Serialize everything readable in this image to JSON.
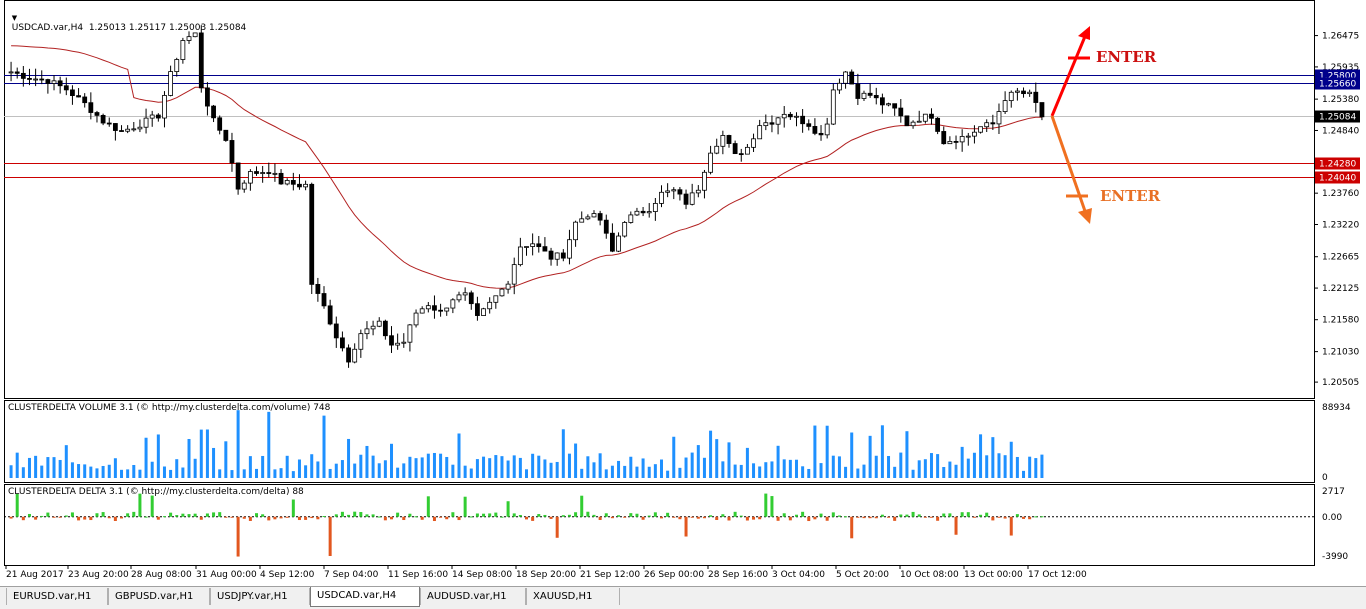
{
  "header": {
    "symbol_line": "USDCAD.var,H4  1.25013 1.25117 1.25003 1.25084",
    "dropdown_icon": "triangle-down-icon"
  },
  "indicators": {
    "volume_label": "CLUSTERDELTA VOLUME 3.1 (© http://my.clusterdelta.com/volume) 748",
    "delta_label": "CLUSTERDELTA DELTA 3.1 (© http://my.clusterdelta.com/delta) 88"
  },
  "annotations": {
    "enter_up": "ENTER",
    "enter_down": "ENTER"
  },
  "tabs": [
    {
      "label": "EURUSD.var,H1",
      "active": false
    },
    {
      "label": "GBPUSD.var,H1",
      "active": false
    },
    {
      "label": "USDJPY.var,H1",
      "active": false
    },
    {
      "label": "USDCAD.var,H4",
      "active": true
    },
    {
      "label": "AUDUSD.var,H1",
      "active": false
    },
    {
      "label": "XAUUSD,H1",
      "active": false
    }
  ],
  "colors": {
    "candle": "#000000",
    "ma_line": "#b22222",
    "blue_level": "#00008b",
    "red_level": "#cc0000",
    "volume_bar": "#1e90ff",
    "delta_pos": "#32cd32",
    "delta_neg": "#e2571f",
    "arrow_up": "#ff0000",
    "arrow_down": "#f07020"
  },
  "chart_data": [
    {
      "type": "candlestick",
      "title": "USDCAD.var,H4",
      "ylim": [
        1.203,
        1.2695
      ],
      "y_ticks": [
        "1.26475",
        "1.25935",
        "1.25380",
        "1.24840",
        "1.23760",
        "1.23220",
        "1.22665",
        "1.22125",
        "1.21580",
        "1.21030",
        "1.20505"
      ],
      "x_ticks": [
        "21 Aug 2017",
        "23 Aug 20:00",
        "28 Aug 08:00",
        "31 Aug 00:00",
        "4 Sep 12:00",
        "7 Sep 04:00",
        "11 Sep 16:00",
        "14 Sep 08:00",
        "18 Sep 20:00",
        "21 Sep 12:00",
        "26 Sep 00:00",
        "28 Sep 16:00",
        "3 Oct 04:00",
        "5 Oct 20:00",
        "10 Oct 08:00",
        "13 Oct 00:00",
        "17 Oct 12:00"
      ],
      "price_levels": [
        {
          "value": 1.258,
          "label": "1.25800",
          "color": "blue"
        },
        {
          "value": 1.2566,
          "label": "1.25660",
          "color": "blue"
        },
        {
          "value": 1.2428,
          "label": "1.24280",
          "color": "red"
        },
        {
          "value": 1.2404,
          "label": "1.24040",
          "color": "red"
        }
      ],
      "current_price": {
        "value": 1.25084,
        "label": "1.25084"
      },
      "close_path": [
        [
          0,
          1.2585
        ],
        [
          3,
          1.2575
        ],
        [
          6,
          1.257
        ],
        [
          9,
          1.2555
        ],
        [
          12,
          1.253
        ],
        [
          15,
          1.25
        ],
        [
          18,
          1.2482
        ],
        [
          21,
          1.2495
        ],
        [
          24,
          1.251
        ],
        [
          26,
          1.258
        ],
        [
          28,
          1.264
        ],
        [
          30,
          1.265
        ],
        [
          31,
          1.256
        ],
        [
          33,
          1.25
        ],
        [
          35,
          1.247
        ],
        [
          37,
          1.2385
        ],
        [
          39,
          1.241
        ],
        [
          42,
          1.2415
        ],
        [
          44,
          1.2395
        ],
        [
          47,
          1.239
        ],
        [
          48,
          1.239
        ],
        [
          49,
          1.222
        ],
        [
          51,
          1.218
        ],
        [
          53,
          1.213
        ],
        [
          55,
          1.209
        ],
        [
          57,
          1.2135
        ],
        [
          60,
          1.215
        ],
        [
          62,
          1.2115
        ],
        [
          64,
          1.212
        ],
        [
          66,
          1.217
        ],
        [
          68,
          1.2185
        ],
        [
          70,
          1.217
        ],
        [
          72,
          1.2195
        ],
        [
          74,
          1.22
        ],
        [
          76,
          1.216
        ],
        [
          78,
          1.2185
        ],
        [
          80,
          1.221
        ],
        [
          81,
          1.2225
        ],
        [
          83,
          1.2285
        ],
        [
          85,
          1.229
        ],
        [
          88,
          1.2265
        ],
        [
          90,
          1.227
        ],
        [
          92,
          1.2325
        ],
        [
          94,
          1.234
        ],
        [
          96,
          1.233
        ],
        [
          98,
          1.2275
        ],
        [
          100,
          1.233
        ],
        [
          102,
          1.234
        ],
        [
          104,
          1.235
        ],
        [
          106,
          1.2375
        ],
        [
          108,
          1.238
        ],
        [
          110,
          1.236
        ],
        [
          112,
          1.2385
        ],
        [
          114,
          1.245
        ],
        [
          116,
          1.2475
        ],
        [
          118,
          1.244
        ],
        [
          120,
          1.2455
        ],
        [
          122,
          1.2495
        ],
        [
          124,
          1.25
        ],
        [
          126,
          1.2515
        ],
        [
          128,
          1.2505
        ],
        [
          130,
          1.2495
        ],
        [
          132,
          1.2475
        ],
        [
          133,
          1.25
        ],
        [
          134,
          1.2555
        ],
        [
          136,
          1.2585
        ],
        [
          138,
          1.2545
        ],
        [
          140,
          1.2545
        ],
        [
          142,
          1.253
        ],
        [
          144,
          1.252
        ],
        [
          146,
          1.2495
        ],
        [
          148,
          1.2505
        ],
        [
          150,
          1.251
        ],
        [
          152,
          1.2465
        ],
        [
          154,
          1.247
        ],
        [
          156,
          1.2475
        ],
        [
          158,
          1.249
        ],
        [
          160,
          1.2495
        ],
        [
          162,
          1.254
        ],
        [
          164,
          1.255
        ],
        [
          166,
          1.2545
        ],
        [
          167,
          1.253
        ],
        [
          168,
          1.2508
        ]
      ],
      "volume": {
        "ylim": [
          0,
          88934
        ],
        "y_ticks": [
          "88934",
          "0"
        ]
      },
      "delta": {
        "ylim": [
          -3990,
          2717
        ],
        "y_ticks": [
          "2717",
          "0.00",
          "-3990"
        ]
      }
    }
  ]
}
